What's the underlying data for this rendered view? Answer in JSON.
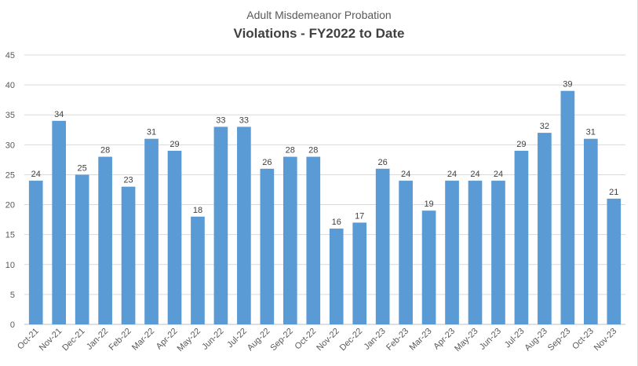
{
  "chart_data": {
    "type": "bar",
    "subtitle": "Adult Misdemeanor Probation",
    "title": "Violations - FY2022 to Date",
    "xlabel": "",
    "ylabel": "",
    "ylim": [
      0,
      45
    ],
    "yticks": [
      0,
      5,
      10,
      15,
      20,
      25,
      30,
      35,
      40,
      45
    ],
    "grid": true,
    "legend": "none",
    "bar_color": "#5b9bd5",
    "data_labels": true,
    "categories": [
      "Oct-21",
      "Nov-21",
      "Dec-21",
      "Jan-22",
      "Feb-22",
      "Mar-22",
      "Apr-22",
      "May-22",
      "Jun-22",
      "Jul-22",
      "Aug-22",
      "Sep-22",
      "Oct-22",
      "Nov-22",
      "Dec-22",
      "Jan-23",
      "Feb-23",
      "Mar-23",
      "Apr-23",
      "May-23",
      "Jun-23",
      "Jul-23",
      "Aug-23",
      "Sep-23",
      "Oct-23",
      "Nov-23"
    ],
    "values": [
      24,
      34,
      25,
      28,
      23,
      31,
      29,
      18,
      33,
      33,
      26,
      28,
      28,
      16,
      17,
      26,
      24,
      19,
      24,
      24,
      24,
      29,
      32,
      39,
      31,
      21
    ]
  }
}
